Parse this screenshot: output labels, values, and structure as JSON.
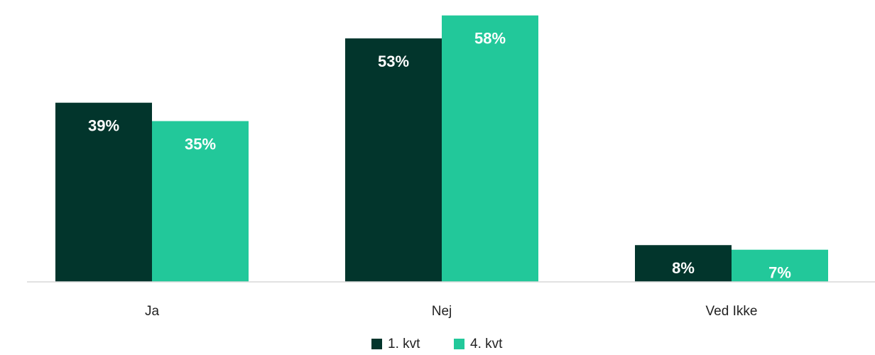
{
  "chart_data": {
    "type": "bar",
    "categories": [
      "Ja",
      "Nej",
      "Ved Ikke"
    ],
    "series": [
      {
        "name": "1. kvt",
        "values": [
          39,
          53,
          8
        ],
        "labels": [
          "39%",
          "53%",
          "8%"
        ],
        "color": "#02352C"
      },
      {
        "name": "4. kvt",
        "values": [
          35,
          58,
          7
        ],
        "labels": [
          "35%",
          "58%",
          "7%"
        ],
        "color": "#22C89A"
      }
    ],
    "title": "",
    "xlabel": "",
    "ylabel": "",
    "ylim": [
      0,
      60
    ],
    "grid": false,
    "legend": "bottom-center"
  }
}
